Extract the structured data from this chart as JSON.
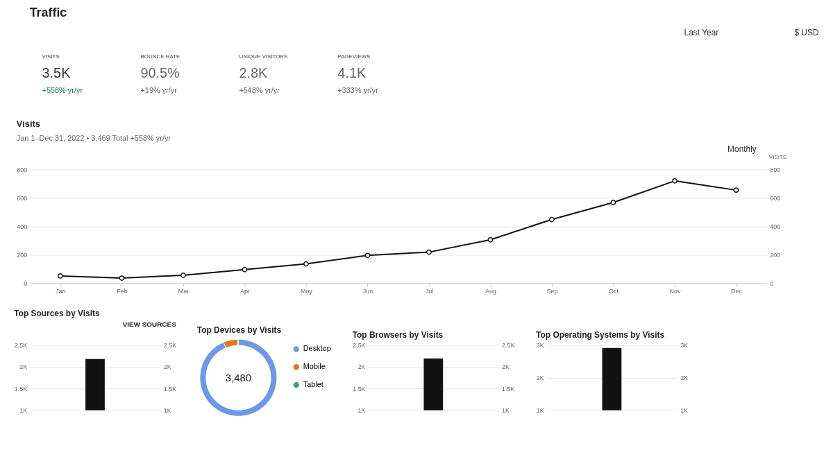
{
  "chart_data": [
    {
      "type": "other",
      "title": "Traffic",
      "annotations": [
        "Last Year",
        "$ USD",
        "VISITS",
        "3.5K",
        "+558% yr/yr",
        "BOUNCE RATE",
        "90.5%",
        "+19% yr/yr",
        "UNIQUE VISITORS",
        "2.8K",
        "+548% yr/yr",
        "PAGEVIEWS",
        "4.1K",
        "+333% yr/yr"
      ]
    },
    {
      "type": "line",
      "title": "Visits",
      "subtitle": "Jan 1–Dec 31, 2022 • 3,469 Total +558% yr/yr",
      "annotations": [
        "Monthly"
      ],
      "y2label": "VISITS",
      "categories": [
        "Jan",
        "Feb",
        "Mar",
        "Apr",
        "May",
        "Jun",
        "Jul",
        "Aug",
        "Sep",
        "Oct",
        "Nov",
        "Dec"
      ],
      "series": [
        {
          "color": "#111111",
          "values": [
            50,
            35,
            55,
            95,
            135,
            195,
            218,
            305,
            448,
            568,
            720,
            655
          ]
        }
      ],
      "ylim": [
        0,
        800
      ],
      "yticks": [
        0,
        200,
        400,
        600,
        800
      ],
      "y2lim": [
        0,
        800
      ],
      "y2ticks": [
        0,
        200,
        400,
        600,
        800
      ],
      "grid": "y",
      "marker": "circle",
      "line_style": "solid"
    },
    {
      "type": "bar",
      "title": "Top Sources by Visits",
      "annotations": [
        "VIEW SOURCES"
      ],
      "categories": [
        null
      ],
      "series": [
        {
          "color": "#111111",
          "values": [
            2180
          ]
        }
      ],
      "ylim": [
        1000,
        2500
      ],
      "yticks": [
        {
          "value": 1000,
          "label": "1K"
        },
        {
          "value": 1500,
          "label": "1.5K"
        },
        {
          "value": 2000,
          "label": "2K"
        },
        {
          "value": 2500,
          "label": "2.5K"
        }
      ],
      "y2lim": [
        1000,
        2500
      ],
      "y2ticks": [
        {
          "value": 1000,
          "label": "1K"
        },
        {
          "value": 1500,
          "label": "1.5K"
        },
        {
          "value": 2000,
          "label": "2K"
        },
        {
          "value": 2500,
          "label": "2.5K"
        }
      ],
      "grid": "y"
    },
    {
      "type": "donut",
      "title": "Top Devices by Visits",
      "annotations": [
        "3,480"
      ],
      "categories": [
        "Desktop",
        "Mobile",
        "Tablet"
      ],
      "values": [
        93.7,
        6.0,
        0.3
      ],
      "colors": [
        "#6e97e5",
        "#e3761d",
        "#3aa36a"
      ],
      "legend": "right"
    },
    {
      "type": "bar",
      "title": "Top Browsers by Visits",
      "categories": [
        null
      ],
      "series": [
        {
          "color": "#111111",
          "values": [
            2190
          ]
        }
      ],
      "ylim": [
        1000,
        2500
      ],
      "yticks": [
        {
          "value": 1000,
          "label": "1K"
        },
        {
          "value": 1500,
          "label": "1.5K"
        },
        {
          "value": 2000,
          "label": "2K"
        },
        {
          "value": 2500,
          "label": "2.5K"
        }
      ],
      "y2lim": [
        1000,
        2500
      ],
      "y2ticks": [
        {
          "value": 1000,
          "label": "1K"
        },
        {
          "value": 1500,
          "label": "1.5K"
        },
        {
          "value": 2000,
          "label": "2K"
        },
        {
          "value": 2500,
          "label": "2.5K"
        }
      ],
      "grid": "y"
    },
    {
      "type": "bar",
      "title": "Top Operating Systems by Visits",
      "categories": [
        null
      ],
      "series": [
        {
          "color": "#111111",
          "values": [
            2910
          ]
        }
      ],
      "ylim": [
        1000,
        3000
      ],
      "yticks": [
        {
          "value": 1000,
          "label": "1K"
        },
        {
          "value": 2000,
          "label": "2K"
        },
        {
          "value": 3000,
          "label": "3K"
        }
      ],
      "y2lim": [
        1000,
        3000
      ],
      "y2ticks": [
        {
          "value": 1000,
          "label": "1K"
        },
        {
          "value": 2000,
          "label": "2K"
        },
        {
          "value": 3000,
          "label": "3K"
        }
      ],
      "grid": "y"
    }
  ]
}
